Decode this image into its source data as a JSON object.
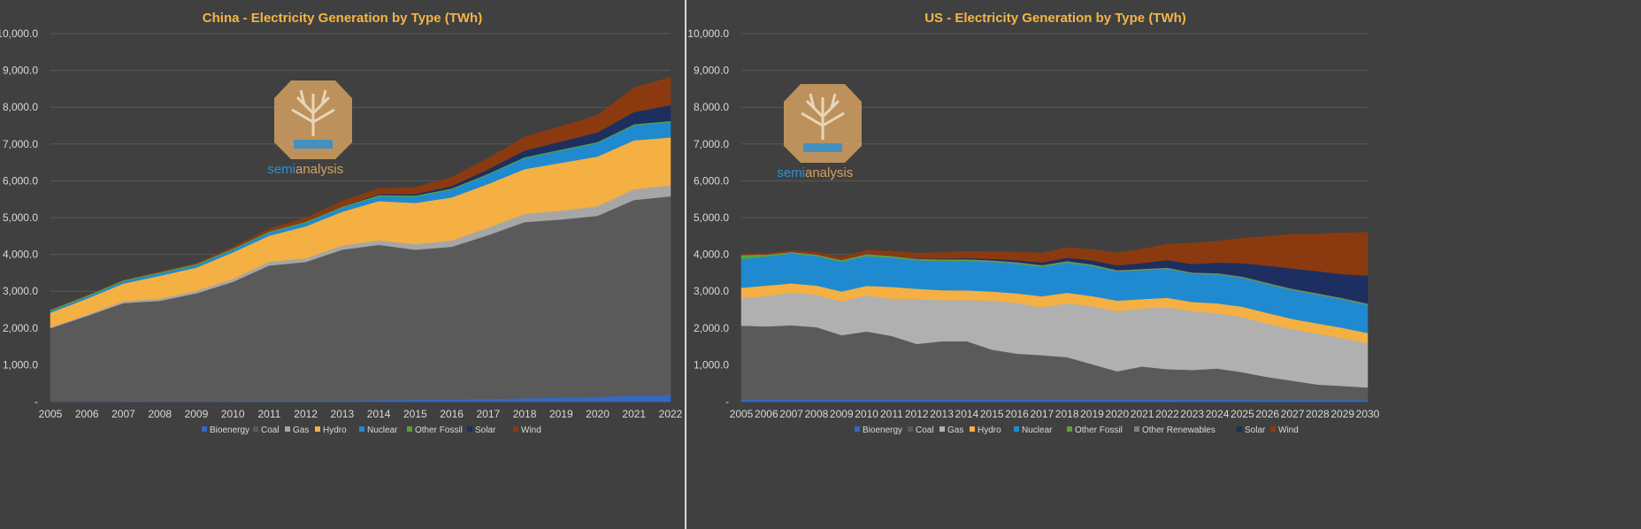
{
  "chart_data": [
    {
      "id": "china",
      "type": "area",
      "stacked": true,
      "title": "China - Electricity Generation by Type (TWh)",
      "xlabel": "",
      "ylabel": "",
      "ylim": [
        0,
        10000
      ],
      "y_ticks": [
        "-",
        "1,000.0",
        "2,000.0",
        "3,000.0",
        "4,000.0",
        "5,000.0",
        "6,000.0",
        "7,000.0",
        "8,000.0",
        "9,000.0",
        "10,000.0"
      ],
      "grid": true,
      "legend": "bottom",
      "categories": [
        "2005",
        "2006",
        "2007",
        "2008",
        "2009",
        "2010",
        "2011",
        "2012",
        "2013",
        "2014",
        "2015",
        "2016",
        "2017",
        "2018",
        "2019",
        "2020",
        "2021",
        "2022"
      ],
      "series": [
        {
          "name": "Bioenergy",
          "color": "#3468c4",
          "values": [
            5,
            7,
            9,
            11,
            13,
            15,
            20,
            25,
            30,
            40,
            50,
            60,
            75,
            90,
            110,
            130,
            160,
            180
          ]
        },
        {
          "name": "Coal",
          "color": "#5a5a5a",
          "values": [
            1990,
            2320,
            2670,
            2730,
            2930,
            3240,
            3680,
            3770,
            4100,
            4220,
            4080,
            4150,
            4450,
            4790,
            4840,
            4920,
            5320,
            5400
          ]
        },
        {
          "name": "Gas",
          "color": "#a6a6a6",
          "values": [
            20,
            30,
            50,
            60,
            70,
            80,
            100,
            100,
            110,
            120,
            150,
            170,
            200,
            220,
            240,
            260,
            290,
            300
          ]
        },
        {
          "name": "Hydro",
          "color": "#f4b042",
          "values": [
            400,
            440,
            480,
            620,
            630,
            720,
            710,
            870,
            920,
            1070,
            1120,
            1170,
            1190,
            1220,
            1300,
            1350,
            1330,
            1300
          ]
        },
        {
          "name": "Nuclear",
          "color": "#1f8ad0",
          "values": [
            50,
            55,
            62,
            68,
            70,
            74,
            87,
            97,
            110,
            132,
            170,
            213,
            248,
            295,
            330,
            366,
            408,
            417
          ]
        },
        {
          "name": "Other Fossil",
          "color": "#5aa13a",
          "values": [
            30,
            30,
            30,
            30,
            30,
            30,
            30,
            30,
            30,
            30,
            30,
            30,
            30,
            30,
            30,
            30,
            30,
            30
          ]
        },
        {
          "name": "Solar",
          "color": "#1c2f60",
          "values": [
            0,
            0,
            0,
            0,
            0,
            1,
            3,
            4,
            8,
            24,
            40,
            65,
            120,
            180,
            220,
            260,
            330,
            430
          ]
        },
        {
          "name": "Wind",
          "color": "#8b3a0f",
          "values": [
            2,
            4,
            6,
            13,
            26,
            45,
            70,
            96,
            140,
            160,
            180,
            240,
            300,
            370,
            410,
            470,
            660,
            760
          ]
        }
      ]
    },
    {
      "id": "us",
      "type": "area",
      "stacked": true,
      "title": "US - Electricity Generation by Type (TWh)",
      "xlabel": "",
      "ylabel": "",
      "ylim": [
        0,
        10000
      ],
      "y_ticks": [
        "-",
        "1,000.0",
        "2,000.0",
        "3,000.0",
        "4,000.0",
        "5,000.0",
        "6,000.0",
        "7,000.0",
        "8,000.0",
        "9,000.0",
        "10,000.0"
      ],
      "grid": true,
      "legend": "bottom",
      "categories": [
        "2005",
        "2006",
        "2007",
        "2008",
        "2009",
        "2010",
        "2011",
        "2012",
        "2013",
        "2014",
        "2015",
        "2016",
        "2017",
        "2018",
        "2019",
        "2020",
        "2021",
        "2022",
        "2023",
        "2024",
        "2025",
        "2026",
        "2027",
        "2028",
        "2029",
        "2030"
      ],
      "series": [
        {
          "name": "Bioenergy",
          "color": "#3468c4",
          "values": [
            55,
            55,
            55,
            55,
            55,
            57,
            57,
            58,
            60,
            63,
            63,
            62,
            62,
            60,
            58,
            55,
            55,
            53,
            50,
            50,
            50,
            48,
            48,
            45,
            45,
            45
          ]
        },
        {
          "name": "Coal",
          "color": "#5a5a5a",
          "values": [
            2010,
            1990,
            2020,
            1970,
            1750,
            1850,
            1730,
            1510,
            1580,
            1580,
            1350,
            1240,
            1200,
            1150,
            960,
            770,
            900,
            830,
            810,
            850,
            750,
            620,
            520,
            420,
            380,
            340
          ]
        },
        {
          "name": "Gas",
          "color": "#b0b0b0",
          "values": [
            760,
            820,
            890,
            880,
            920,
            980,
            1010,
            1220,
            1120,
            1120,
            1330,
            1380,
            1300,
            1460,
            1580,
            1630,
            1580,
            1680,
            1600,
            1500,
            1500,
            1450,
            1400,
            1380,
            1300,
            1200
          ]
        },
        {
          "name": "Hydro",
          "color": "#f4b042",
          "values": [
            270,
            290,
            250,
            250,
            270,
            260,
            320,
            280,
            270,
            260,
            250,
            260,
            300,
            290,
            270,
            290,
            250,
            260,
            250,
            270,
            280,
            290,
            280,
            280,
            280,
            280
          ]
        },
        {
          "name": "Nuclear",
          "color": "#1f8ad0",
          "values": [
            780,
            790,
            810,
            800,
            800,
            810,
            790,
            770,
            790,
            800,
            800,
            800,
            800,
            810,
            810,
            790,
            780,
            780,
            760,
            780,
            780,
            780,
            780,
            780,
            770,
            760
          ]
        },
        {
          "name": "Other Fossil",
          "color": "#5aa13a",
          "values": [
            100,
            40,
            30,
            30,
            40,
            40,
            40,
            30,
            30,
            30,
            30,
            30,
            30,
            30,
            30,
            20,
            20,
            20,
            20,
            20,
            20,
            20,
            20,
            20,
            20,
            20
          ]
        },
        {
          "name": "Other Renewables",
          "color": "#7f7f7f",
          "values": [
            15,
            15,
            15,
            15,
            15,
            15,
            15,
            15,
            17,
            18,
            18,
            19,
            20,
            20,
            20,
            20,
            20,
            20,
            20,
            20,
            20,
            20,
            20,
            20,
            20,
            20
          ]
        },
        {
          "name": "Solar",
          "color": "#1c2f60",
          "values": [
            0,
            0,
            1,
            2,
            2,
            4,
            6,
            10,
            20,
            30,
            40,
            50,
            70,
            90,
            110,
            130,
            160,
            200,
            230,
            290,
            360,
            470,
            550,
            600,
            650,
            760
          ]
        },
        {
          "name": "Wind",
          "color": "#8b3a0f",
          "values": [
            18,
            27,
            34,
            55,
            74,
            95,
            120,
            140,
            167,
            180,
            190,
            227,
            254,
            275,
            300,
            338,
            380,
            435,
            570,
            580,
            680,
            790,
            930,
            1010,
            1120,
            1170
          ]
        }
      ]
    }
  ],
  "watermark": {
    "text_a": "semi",
    "text_b": "analysis"
  }
}
